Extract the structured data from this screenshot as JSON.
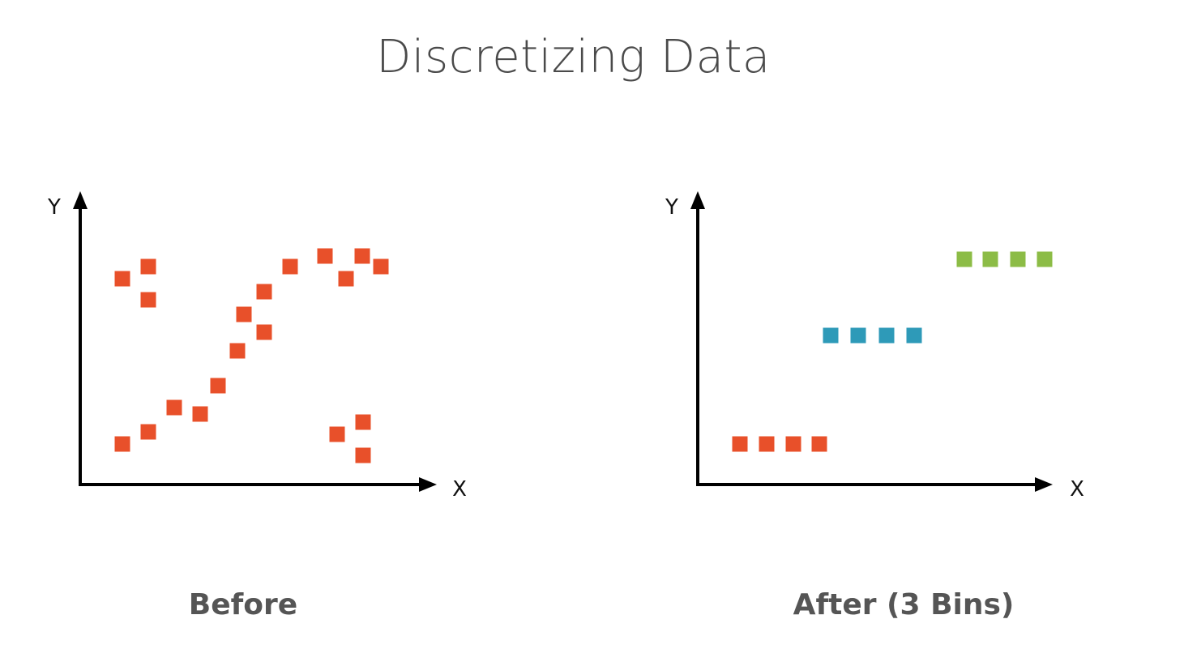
{
  "title": "Discretizing Data",
  "left_plot": {
    "caption": "Before",
    "x_axis_label": "X",
    "y_axis_label": "Y",
    "point_color": "#e8502a"
  },
  "right_plot": {
    "caption": "After (3 Bins)",
    "x_axis_label": "X",
    "y_axis_label": "Y",
    "bin_colors": [
      "#e8502a",
      "#2e9ab8",
      "#8cbc46"
    ]
  }
}
